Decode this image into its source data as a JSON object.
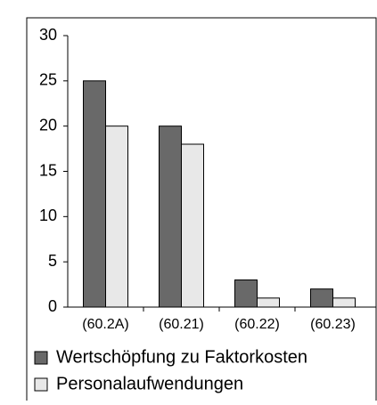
{
  "chart_data": {
    "type": "bar",
    "categories": [
      "(60.2A)",
      "(60.21)",
      "(60.22)",
      "(60.23)"
    ],
    "series": [
      {
        "name": "Wertschöpfung zu Faktorkosten",
        "color": "#696969",
        "values": [
          25,
          20,
          3,
          2
        ]
      },
      {
        "name": "Personalaufwendungen",
        "color": "#e8e8e8",
        "values": [
          20,
          18,
          1,
          1
        ]
      }
    ],
    "ylim": [
      0,
      30
    ],
    "yticks": [
      0,
      5,
      10,
      15,
      20,
      25,
      30
    ],
    "grid": false
  }
}
